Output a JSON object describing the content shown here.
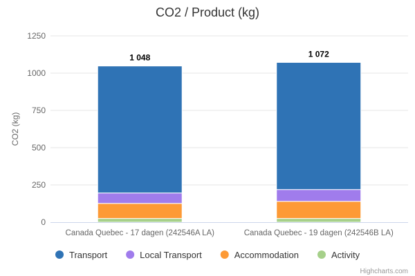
{
  "chart_data": {
    "type": "bar",
    "stacked": true,
    "title": "CO2 / Product (kg)",
    "ylabel": "CO2 (kg)",
    "xlabel": "",
    "ylim": [
      0,
      1250
    ],
    "yticks": [
      0,
      250,
      500,
      750,
      1000,
      1250
    ],
    "ytick_labels": [
      "0",
      "250",
      "500",
      "750",
      "1000",
      "1250"
    ],
    "categories": [
      "Canada Quebec - 17 dagen (242546A LA)",
      "Canada Quebec - 19 dagen (242546B LA)"
    ],
    "totals": [
      1048,
      1072
    ],
    "total_labels": [
      "1 048",
      "1 072"
    ],
    "series": [
      {
        "name": "Transport",
        "color": "#2f73b5",
        "values": [
          852,
          853
        ]
      },
      {
        "name": "Local Transport",
        "color": "#a07cec",
        "values": [
          70,
          79
        ]
      },
      {
        "name": "Accommodation",
        "color": "#fd9a36",
        "values": [
          101,
          115
        ]
      },
      {
        "name": "Activity",
        "color": "#a6d08a",
        "values": [
          25,
          25
        ]
      }
    ],
    "legend_position": "bottom-left",
    "grid": true
  },
  "credits": "Highcharts.com"
}
